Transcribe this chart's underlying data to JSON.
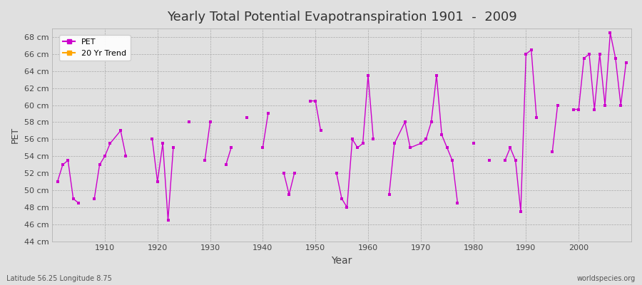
{
  "title": "Yearly Total Potential Evapotranspiration 1901  -  2009",
  "xlabel": "Year",
  "ylabel": "PET",
  "footer_left": "Latitude 56.25 Longitude 8.75",
  "footer_right": "worldspecies.org",
  "background_color": "#e0e0e0",
  "plot_bg_color": "#e0e0e0",
  "line_color": "#cc00cc",
  "trend_color": "#ffa500",
  "ylim": [
    44,
    69
  ],
  "ytick_labels": [
    "44 cm",
    "46 cm",
    "48 cm",
    "50 cm",
    "52 cm",
    "54 cm",
    "56 cm",
    "58 cm",
    "60 cm",
    "62 cm",
    "64 cm",
    "66 cm",
    "68 cm"
  ],
  "ytick_values": [
    44,
    46,
    48,
    50,
    52,
    54,
    56,
    58,
    60,
    62,
    64,
    66,
    68
  ],
  "years": [
    1901,
    1902,
    1903,
    1904,
    1905,
    1908,
    1909,
    1910,
    1911,
    1913,
    1914,
    1919,
    1920,
    1921,
    1922,
    1923,
    1926,
    1929,
    1930,
    1933,
    1934,
    1937,
    1940,
    1941,
    1944,
    1945,
    1946,
    1949,
    1950,
    1951,
    1954,
    1955,
    1956,
    1957,
    1958,
    1959,
    1960,
    1961,
    1964,
    1965,
    1967,
    1968,
    1970,
    1971,
    1972,
    1973,
    1974,
    1975,
    1976,
    1977,
    1980,
    1983,
    1986,
    1987,
    1988,
    1989,
    1990,
    1991,
    1992,
    1995,
    1996,
    1999,
    2000,
    2001,
    2002,
    2003,
    2004,
    2005,
    2006,
    2007,
    2008,
    2009
  ],
  "pet": [
    51.0,
    53.0,
    53.5,
    49.0,
    48.5,
    49.0,
    53.0,
    54.0,
    55.5,
    57.0,
    54.0,
    56.0,
    51.0,
    55.5,
    46.5,
    55.0,
    58.0,
    53.5,
    58.0,
    53.0,
    55.0,
    58.5,
    55.0,
    59.0,
    52.0,
    49.5,
    52.0,
    60.5,
    60.5,
    57.0,
    52.0,
    49.0,
    48.0,
    56.0,
    55.0,
    55.5,
    63.5,
    56.0,
    49.5,
    55.5,
    58.0,
    55.0,
    55.5,
    56.0,
    58.0,
    63.5,
    56.5,
    55.0,
    53.5,
    48.5,
    55.5,
    53.5,
    53.5,
    55.0,
    53.5,
    47.5,
    66.0,
    66.5,
    58.5,
    54.5,
    60.0,
    59.5,
    59.5,
    65.5,
    66.0,
    59.5,
    66.0,
    60.0,
    68.5,
    65.5,
    60.0,
    65.0
  ],
  "xticks": [
    1910,
    1920,
    1930,
    1940,
    1950,
    1960,
    1970,
    1980,
    1990,
    2000
  ]
}
